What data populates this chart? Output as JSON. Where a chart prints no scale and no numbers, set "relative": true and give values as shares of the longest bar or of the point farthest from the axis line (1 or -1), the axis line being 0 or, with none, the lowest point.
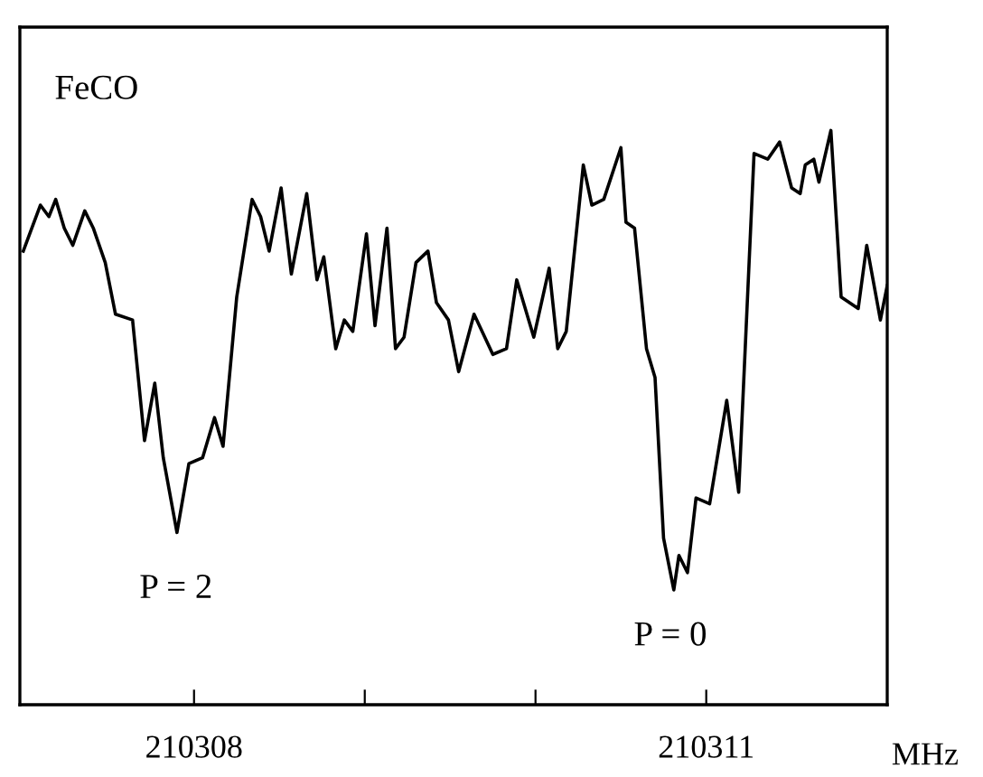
{
  "chart_data": {
    "type": "line",
    "relative": true,
    "xlabel": "MHz",
    "color": "#000000",
    "grid": false,
    "legend": false,
    "marker": "none",
    "line_style": "solid",
    "xlim": [
      210306.98,
      210312.06
    ],
    "xticks": [
      210308,
      {
        "value": 210309,
        "label": null
      },
      {
        "value": 210310,
        "label": null
      },
      210311
    ],
    "annotations": [
      "FeCO",
      "P = 2",
      "P = 0"
    ],
    "x": [
      210307.0,
      210307.1,
      210307.15,
      210307.19,
      210307.24,
      210307.29,
      210307.36,
      210307.41,
      210307.48,
      210307.54,
      210307.64,
      210307.71,
      210307.77,
      210307.82,
      210307.9,
      210307.97,
      210308.05,
      210308.12,
      210308.17,
      210308.25,
      210308.34,
      210308.39,
      210308.44,
      210308.51,
      210308.57,
      210308.66,
      210308.72,
      210308.76,
      210308.83,
      210308.88,
      210308.93,
      210309.01,
      210309.06,
      210309.13,
      210309.18,
      210309.23,
      210309.3,
      210309.37,
      210309.42,
      210309.49,
      210309.55,
      210309.64,
      210309.75,
      210309.83,
      210309.89,
      210309.99,
      210310.08,
      210310.13,
      210310.18,
      210310.28,
      210310.33,
      210310.4,
      210310.5,
      210310.53,
      210310.58,
      210310.65,
      210310.7,
      210310.75,
      210310.81,
      210310.84,
      210310.89,
      210310.94,
      210311.02,
      210311.12,
      210311.19,
      210311.28,
      210311.36,
      210311.43,
      210311.5,
      210311.55,
      210311.58,
      210311.63,
      210311.66,
      210311.73,
      210311.79,
      210311.89,
      210311.94,
      210312.02,
      210312.06
    ],
    "values": [
      0.79,
      0.87,
      0.85,
      0.88,
      0.83,
      0.8,
      0.86,
      0.83,
      0.77,
      0.68,
      0.67,
      0.46,
      0.56,
      0.43,
      0.3,
      0.42,
      0.43,
      0.5,
      0.45,
      0.71,
      0.88,
      0.85,
      0.79,
      0.9,
      0.75,
      0.89,
      0.74,
      0.78,
      0.62,
      0.67,
      0.65,
      0.82,
      0.66,
      0.83,
      0.62,
      0.64,
      0.77,
      0.79,
      0.7,
      0.67,
      0.58,
      0.68,
      0.61,
      0.62,
      0.74,
      0.64,
      0.76,
      0.62,
      0.65,
      0.94,
      0.87,
      0.88,
      0.97,
      0.84,
      0.83,
      0.62,
      0.57,
      0.29,
      0.2,
      0.26,
      0.23,
      0.36,
      0.35,
      0.53,
      0.37,
      0.96,
      0.95,
      0.98,
      0.9,
      0.89,
      0.94,
      0.95,
      0.91,
      1,
      0.71,
      0.69,
      0.8,
      0.67,
      0.73
    ]
  }
}
